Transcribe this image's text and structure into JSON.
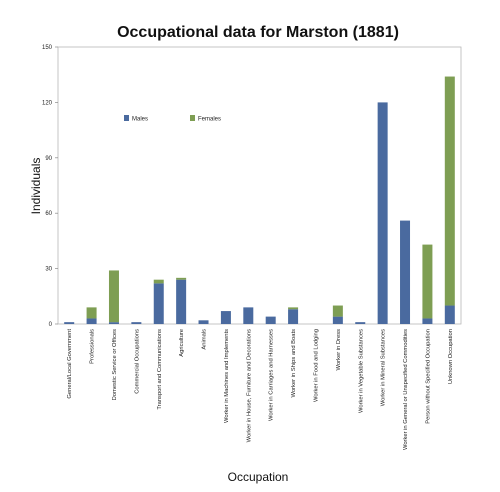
{
  "chart_data": {
    "type": "bar",
    "stacked": true,
    "title": "Occupational data for Marston (1881)",
    "xlabel": "Occupation",
    "ylabel": "Individuals",
    "ylim": [
      0,
      150
    ],
    "yticks": [
      0,
      30,
      60,
      90,
      120,
      150
    ],
    "grid": false,
    "legend_position": "top-left",
    "categories": [
      "General/Local Government",
      "Professionals",
      "Domestic Service or Offices",
      "Commercial Occupations",
      "Transport and Communications",
      "Agriculture",
      "Animals",
      "Worker in Machines and Implements",
      "Worker in House, Furniture and Decorations",
      "Worker in Carriages and Harnesses",
      "Worker in Ships and Boats",
      "Worker in Food and Lodging",
      "Worker in Dress",
      "Worker in Vegetable Substances",
      "Worker in Mineral Substances",
      "Worker in General or Unspecified Commodities",
      "Person without Specified Occupation",
      "Unknown Occupation"
    ],
    "series": [
      {
        "name": "Males",
        "color": "#4a6a9f",
        "values": [
          1,
          3,
          1,
          1,
          22,
          24,
          2,
          7,
          9,
          4,
          8,
          0,
          4,
          1,
          120,
          56,
          3,
          10
        ]
      },
      {
        "name": "Females",
        "color": "#7e9e53",
        "values": [
          0,
          6,
          28,
          0,
          2,
          1,
          0,
          0,
          0,
          0,
          1,
          0,
          6,
          0,
          0,
          0,
          40,
          124
        ]
      }
    ]
  }
}
